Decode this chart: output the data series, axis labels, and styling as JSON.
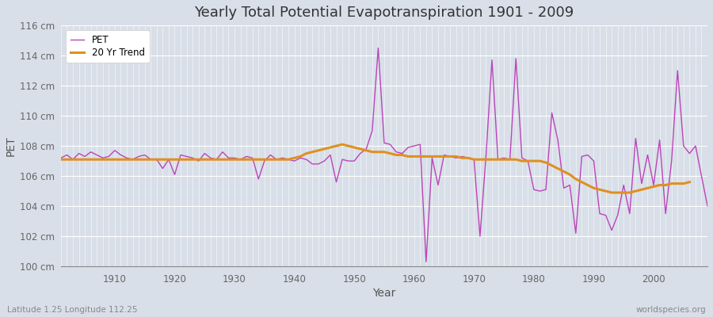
{
  "title": "Yearly Total Potential Evapotranspiration 1901 - 2009",
  "xlabel": "Year",
  "ylabel": "PET",
  "subtitle_left": "Latitude 1.25 Longitude 112.25",
  "subtitle_right": "worldspecies.org",
  "pet_color": "#bb44bb",
  "trend_color": "#e09020",
  "bg_color": "#d8dfe8",
  "plot_bg_color": "#d8dfe8",
  "ylim": [
    100,
    116
  ],
  "xlim": [
    1901,
    2009
  ],
  "ytick_labels": [
    "100 cm",
    "102 cm",
    "104 cm",
    "106 cm",
    "108 cm",
    "110 cm",
    "112 cm",
    "114 cm",
    "116 cm"
  ],
  "ytick_values": [
    100,
    102,
    104,
    106,
    108,
    110,
    112,
    114,
    116
  ],
  "xtick_values": [
    1910,
    1920,
    1930,
    1940,
    1950,
    1960,
    1970,
    1980,
    1990,
    2000
  ],
  "years": [
    1901,
    1902,
    1903,
    1904,
    1905,
    1906,
    1907,
    1908,
    1909,
    1910,
    1911,
    1912,
    1913,
    1914,
    1915,
    1916,
    1917,
    1918,
    1919,
    1920,
    1921,
    1922,
    1923,
    1924,
    1925,
    1926,
    1927,
    1928,
    1929,
    1930,
    1931,
    1932,
    1933,
    1934,
    1935,
    1936,
    1937,
    1938,
    1939,
    1940,
    1941,
    1942,
    1943,
    1944,
    1945,
    1946,
    1947,
    1948,
    1949,
    1950,
    1951,
    1952,
    1953,
    1954,
    1955,
    1956,
    1957,
    1958,
    1959,
    1960,
    1961,
    1962,
    1963,
    1964,
    1965,
    1966,
    1967,
    1968,
    1969,
    1970,
    1971,
    1972,
    1973,
    1974,
    1975,
    1976,
    1977,
    1978,
    1979,
    1980,
    1981,
    1982,
    1983,
    1984,
    1985,
    1986,
    1987,
    1988,
    1989,
    1990,
    1991,
    1992,
    1993,
    1994,
    1995,
    1996,
    1997,
    1998,
    1999,
    2000,
    2001,
    2002,
    2003,
    2004,
    2005,
    2006,
    2007,
    2008,
    2009
  ],
  "pet_values": [
    107.2,
    107.4,
    107.1,
    107.5,
    107.3,
    107.6,
    107.4,
    107.2,
    107.3,
    107.7,
    107.4,
    107.2,
    107.1,
    107.3,
    107.4,
    107.1,
    107.1,
    106.5,
    107.1,
    106.1,
    107.4,
    107.3,
    107.2,
    107.0,
    107.5,
    107.2,
    107.1,
    107.6,
    107.2,
    107.2,
    107.1,
    107.3,
    107.2,
    105.8,
    107.0,
    107.4,
    107.1,
    107.2,
    107.1,
    107.0,
    107.2,
    107.1,
    106.8,
    106.8,
    107.0,
    107.4,
    105.6,
    107.1,
    107.0,
    107.0,
    107.5,
    107.8,
    109.0,
    114.5,
    108.2,
    108.1,
    107.6,
    107.5,
    107.9,
    108.0,
    108.1,
    100.3,
    107.2,
    105.4,
    107.4,
    107.3,
    107.2,
    107.3,
    107.2,
    107.1,
    102.0,
    107.3,
    113.7,
    107.1,
    107.2,
    107.1,
    113.8,
    107.2,
    107.0,
    105.1,
    105.0,
    105.1,
    110.2,
    108.4,
    105.2,
    105.4,
    102.2,
    107.3,
    107.4,
    107.0,
    103.5,
    103.4,
    102.4,
    103.4,
    105.4,
    103.5,
    108.5,
    105.5,
    107.4,
    105.4,
    108.4,
    103.5,
    107.0,
    113.0,
    108.0,
    107.5,
    108.0,
    106.0,
    104.0
  ],
  "trend_values": [
    107.1,
    107.1,
    107.1,
    107.1,
    107.1,
    107.1,
    107.1,
    107.1,
    107.1,
    107.1,
    107.1,
    107.1,
    107.1,
    107.1,
    107.1,
    107.1,
    107.1,
    107.1,
    107.1,
    107.1,
    107.1,
    107.1,
    107.1,
    107.1,
    107.1,
    107.1,
    107.1,
    107.1,
    107.1,
    107.1,
    107.1,
    107.1,
    107.1,
    107.1,
    107.1,
    107.1,
    107.1,
    107.1,
    107.1,
    107.2,
    107.3,
    107.5,
    107.6,
    107.7,
    107.8,
    107.9,
    108.0,
    108.1,
    108.0,
    107.9,
    107.8,
    107.7,
    107.6,
    107.6,
    107.6,
    107.5,
    107.4,
    107.4,
    107.3,
    107.3,
    107.3,
    107.3,
    107.3,
    107.3,
    107.3,
    107.3,
    107.3,
    107.2,
    107.2,
    107.1,
    107.1,
    107.1,
    107.1,
    107.1,
    107.1,
    107.1,
    107.1,
    107.0,
    107.0,
    107.0,
    107.0,
    106.9,
    106.7,
    106.5,
    106.3,
    106.1,
    105.8,
    105.6,
    105.4,
    105.2,
    105.1,
    105.0,
    104.9,
    104.9,
    104.9,
    104.9,
    105.0,
    105.1,
    105.2,
    105.3,
    105.4,
    105.4,
    105.5,
    105.5,
    105.5,
    105.6,
    null,
    null,
    null
  ]
}
